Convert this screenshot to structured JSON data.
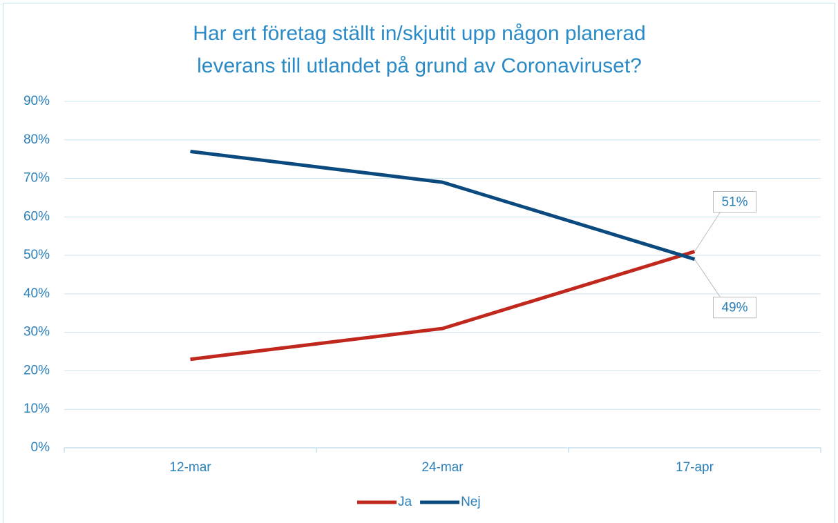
{
  "chart_data": {
    "type": "line",
    "title": [
      "Har ert företag ställt in/skjutit upp någon planerad",
      "leverans till utlandet på grund av Coronaviruset?"
    ],
    "categories": [
      "12-mar",
      "24-mar",
      "17-apr"
    ],
    "series": [
      {
        "name": "Ja",
        "color": "#c0281e",
        "values": [
          23,
          31,
          51
        ],
        "value_labels": [
          null,
          null,
          "51%"
        ]
      },
      {
        "name": "Nej",
        "color": "#0b4a7f",
        "values": [
          77,
          69,
          49
        ],
        "value_labels": [
          null,
          null,
          "49%"
        ]
      }
    ],
    "ylim": [
      0,
      90
    ],
    "yticks": [
      {
        "value": 0,
        "label": "0%"
      },
      {
        "value": 10,
        "label": "10%"
      },
      {
        "value": 20,
        "label": "20%"
      },
      {
        "value": 30,
        "label": "30%"
      },
      {
        "value": 40,
        "label": "40%"
      },
      {
        "value": 50,
        "label": "50%"
      },
      {
        "value": 60,
        "label": "60%"
      },
      {
        "value": 70,
        "label": "70%"
      },
      {
        "value": 80,
        "label": "80%"
      },
      {
        "value": 90,
        "label": "90%"
      }
    ],
    "grid": true,
    "legend": "bottom"
  }
}
